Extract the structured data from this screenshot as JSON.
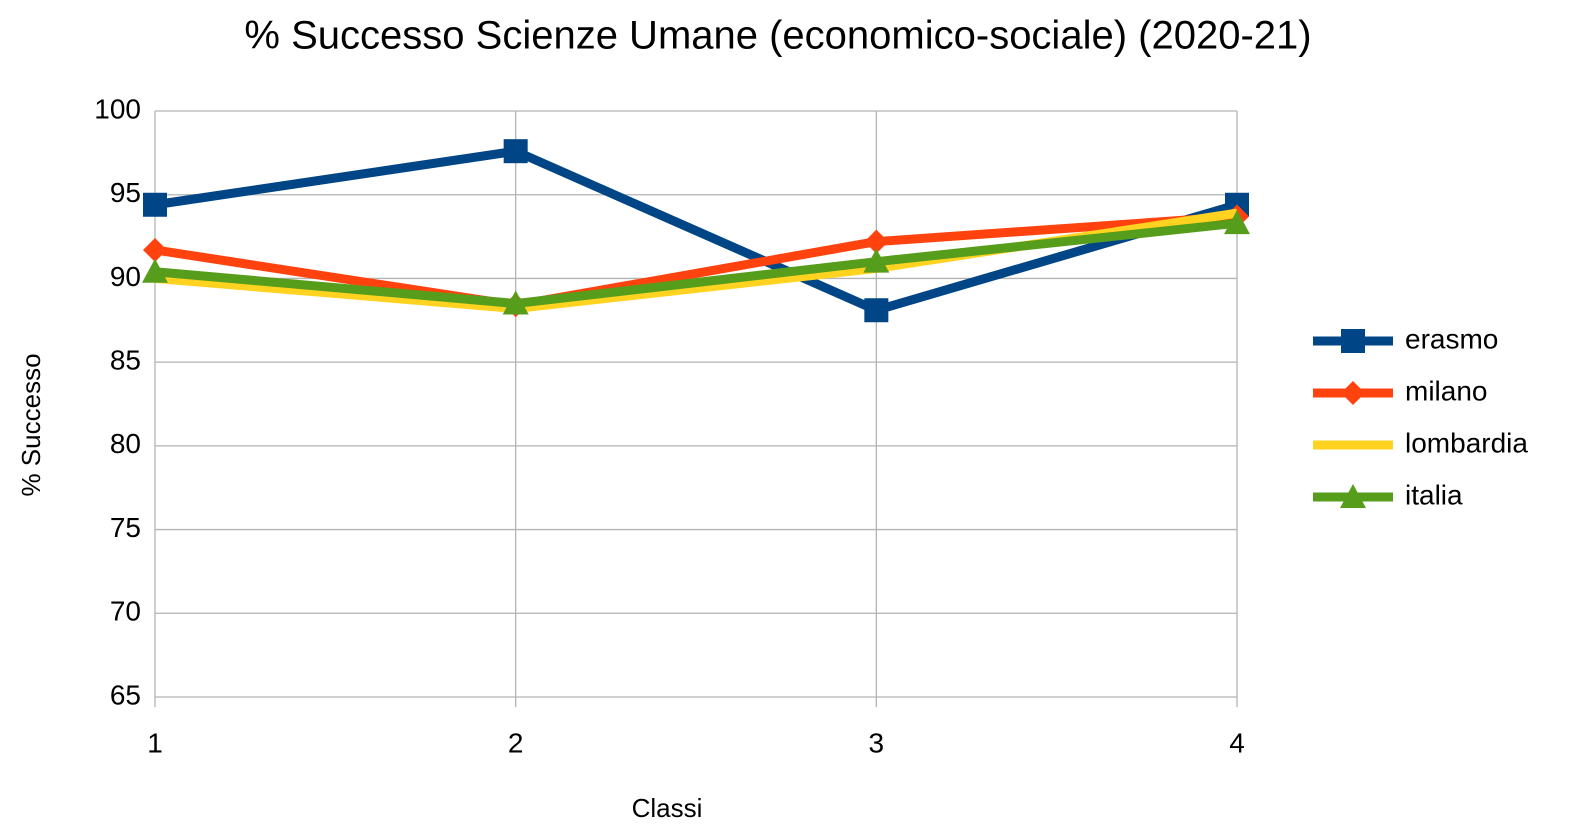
{
  "chart_data": {
    "type": "line",
    "title": "% Successo Scienze Umane (economico-sociale) (2020-21)",
    "x_label": "Classi",
    "y_label": "% Successo",
    "x": [
      1,
      2,
      3,
      4
    ],
    "series": [
      {
        "name": "erasmo",
        "color": "#004586",
        "marker": "square",
        "values": [
          94.4,
          97.6,
          88.1,
          94.4
        ]
      },
      {
        "name": "milano",
        "color": "#ff420e",
        "marker": "diamond",
        "values": [
          91.7,
          88.4,
          92.2,
          93.7
        ]
      },
      {
        "name": "lombardia",
        "color": "#ffd320",
        "marker": "none",
        "values": [
          90.0,
          88.2,
          90.6,
          93.9
        ]
      },
      {
        "name": "italia",
        "color": "#579d1c",
        "marker": "triangle",
        "values": [
          90.4,
          88.5,
          91.0,
          93.3
        ]
      }
    ],
    "xlim": [
      1,
      4
    ],
    "xticks": [
      1,
      2,
      3,
      4
    ],
    "ylim": [
      65,
      100
    ],
    "yticks": [
      65,
      70,
      75,
      80,
      85,
      90,
      95,
      100
    ],
    "grid": true,
    "legend": "right"
  }
}
